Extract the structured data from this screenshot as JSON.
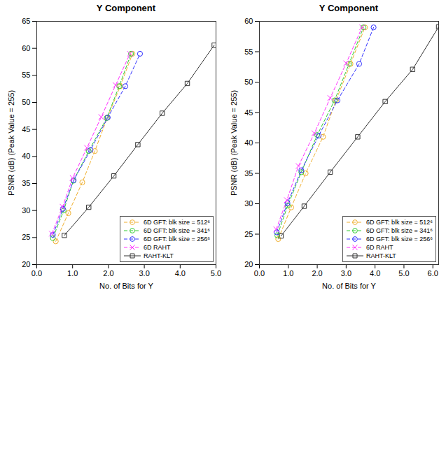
{
  "chart_data": [
    {
      "type": "line",
      "title": "Y Component",
      "x_label": "No. of Bits for Y",
      "y_label": "PSNR (dB) (Peak Value = 255)",
      "xlim": [
        0,
        5
      ],
      "xticks": [
        0,
        1,
        2,
        3,
        4,
        5
      ],
      "ylim": [
        20,
        65
      ],
      "yticks": [
        20,
        25,
        30,
        35,
        40,
        45,
        50,
        55,
        60,
        65
      ],
      "grid": false,
      "legend": "bottom-right",
      "series": [
        {
          "name": "6D GFT: blk size = 512⁶",
          "color": "#f0b030",
          "marker": "circle",
          "line_style": "dashed",
          "x": [
            0.53,
            0.88,
            1.27,
            1.62,
            1.97,
            2.33,
            2.67
          ],
          "values": [
            24.3,
            29.5,
            35.2,
            41.0,
            47.2,
            53.0,
            59.0
          ]
        },
        {
          "name": "6D GFT: blk size = 341⁶",
          "color": "#33cc33",
          "marker": "circle",
          "line_style": "dashed",
          "x": [
            0.45,
            0.75,
            1.02,
            1.45,
            1.95,
            2.3,
            2.63
          ],
          "values": [
            24.9,
            30.0,
            35.5,
            41.0,
            47.1,
            53.0,
            59.0
          ]
        },
        {
          "name": "6D GFT: blk size = 256⁶",
          "color": "#3333ff",
          "marker": "circle",
          "line_style": "dashed",
          "x": [
            0.45,
            0.73,
            1.03,
            1.5,
            1.98,
            2.47,
            2.88
          ],
          "values": [
            25.5,
            30.3,
            35.6,
            41.2,
            47.2,
            53.0,
            59.0
          ]
        },
        {
          "name": "6D RAHT",
          "color": "#ff33ff",
          "marker": "times",
          "line_style": "dashed",
          "x": [
            0.42,
            0.72,
            1.0,
            1.4,
            1.8,
            2.2,
            2.6
          ],
          "values": [
            25.7,
            30.7,
            36.0,
            41.6,
            47.3,
            53.2,
            59.0
          ]
        },
        {
          "name": "RAHT-KLT",
          "color": "#333333",
          "marker": "square",
          "line_style": "solid",
          "x": [
            0.77,
            1.45,
            2.15,
            2.82,
            3.5,
            4.2,
            4.95
          ],
          "values": [
            25.4,
            30.6,
            36.4,
            42.2,
            48.0,
            53.5,
            60.6
          ]
        }
      ]
    },
    {
      "type": "line",
      "title": "Y Component",
      "x_label": "No. of Bits for Y",
      "y_label": "PSNR (dB) (Peak Value = 255)",
      "xlim": [
        0,
        6.2
      ],
      "xticks": [
        0,
        1,
        2,
        3,
        4,
        5,
        6
      ],
      "ylim": [
        20,
        60
      ],
      "yticks": [
        20,
        25,
        30,
        35,
        40,
        45,
        50,
        55,
        60
      ],
      "grid": false,
      "legend": "bottom-right",
      "series": [
        {
          "name": "6D GFT: blk size = 512⁶",
          "color": "#f0b030",
          "marker": "circle",
          "line_style": "dashed",
          "x": [
            0.65,
            1.1,
            1.6,
            2.2,
            2.65,
            3.15,
            3.65
          ],
          "values": [
            24.2,
            29.4,
            35.0,
            41.0,
            47.0,
            53.0,
            59.0
          ]
        },
        {
          "name": "6D GFT: blk size = 341⁶",
          "color": "#33cc33",
          "marker": "circle",
          "line_style": "dashed",
          "x": [
            0.62,
            0.98,
            1.45,
            2.0,
            2.6,
            3.1,
            3.6
          ],
          "values": [
            24.8,
            29.7,
            35.2,
            41.3,
            47.0,
            53.0,
            59.0
          ]
        },
        {
          "name": "6D GFT: blk size = 256⁶",
          "color": "#3333ff",
          "marker": "circle",
          "line_style": "dashed",
          "x": [
            0.6,
            0.97,
            1.45,
            2.05,
            2.7,
            3.45,
            3.95
          ],
          "values": [
            25.3,
            30.1,
            35.5,
            41.2,
            47.0,
            53.0,
            59.0
          ]
        },
        {
          "name": "6D RAHT",
          "color": "#ff33ff",
          "marker": "times",
          "line_style": "dashed",
          "x": [
            0.58,
            0.95,
            1.35,
            1.9,
            2.45,
            3.0,
            3.55
          ],
          "values": [
            25.8,
            30.6,
            36.2,
            41.6,
            47.4,
            53.1,
            59.0
          ]
        },
        {
          "name": "RAHT-KLT",
          "color": "#333333",
          "marker": "square",
          "line_style": "solid",
          "x": [
            0.75,
            1.55,
            2.45,
            3.4,
            4.35,
            5.3,
            6.2
          ],
          "values": [
            24.7,
            29.6,
            35.2,
            41.0,
            46.8,
            52.1,
            59.1
          ]
        }
      ]
    }
  ]
}
